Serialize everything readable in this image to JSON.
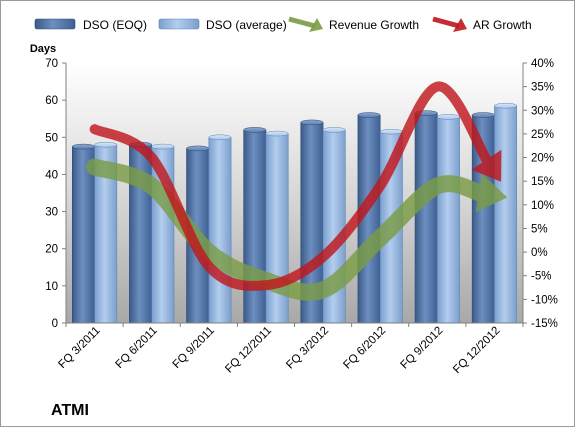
{
  "chart_data": {
    "type": "bar",
    "categories": [
      "FQ 3/2011",
      "FQ 6/2011",
      "FQ 9/2011",
      "FQ 12/2011",
      "FQ 3/2012",
      "FQ 6/2012",
      "FQ 9/2012",
      "FQ 12/2012"
    ],
    "series": [
      {
        "name": "DSO (EOQ)",
        "type": "bar",
        "axis": "left",
        "values": [
          47.5,
          48,
          47,
          52,
          54,
          56,
          56.5,
          56
        ]
      },
      {
        "name": "DSO (average)",
        "type": "bar",
        "axis": "left",
        "values": [
          48,
          47.5,
          50,
          51,
          52,
          51.5,
          55.5,
          58.5
        ]
      },
      {
        "name": "Revenue Growth",
        "type": "line",
        "style": "arrow",
        "axis": "right",
        "values_pct": [
          18,
          14,
          0,
          -6,
          -8,
          3,
          14,
          12
        ]
      },
      {
        "name": "AR Growth",
        "type": "line",
        "style": "arrow",
        "axis": "right",
        "values_pct": [
          26,
          20,
          -3,
          -7,
          -1,
          14,
          35,
          17
        ]
      }
    ],
    "ylabel": "Days",
    "ylim": [
      0,
      70
    ],
    "yticks": [
      "0",
      "10",
      "20",
      "30",
      "40",
      "50",
      "60",
      "70"
    ],
    "y2lim": [
      -15,
      40
    ],
    "y2ticks": [
      "-15%",
      "-10%",
      "-5%",
      "0%",
      "5%",
      "10%",
      "15%",
      "20%",
      "25%",
      "30%",
      "35%",
      "40%"
    ],
    "legend_position": "top",
    "grid": false,
    "company_label": "ATMI",
    "colors": {
      "dso_eoq": "#4d6fa0",
      "dso_avg": "#8fb2de",
      "revenue_growth": "#7a9c45",
      "ar_growth": "#c0171c"
    }
  }
}
